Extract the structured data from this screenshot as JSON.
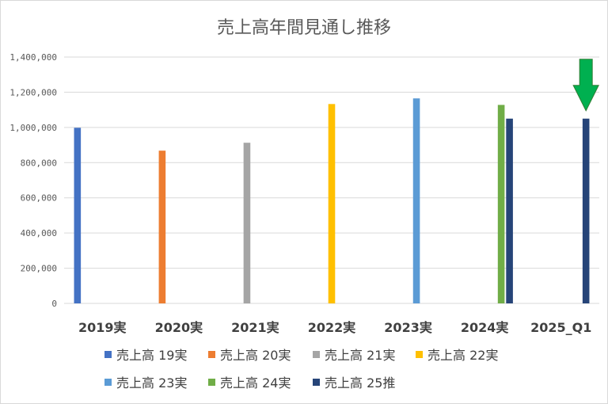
{
  "chart_data": {
    "type": "bar",
    "title": "売上高年間見通し推移",
    "categories": [
      "2019実",
      "2020実",
      "2021実",
      "2022実",
      "2023実",
      "2024実",
      "2025_Q1"
    ],
    "ylim": [
      0,
      1400000
    ],
    "yticks": [
      "0",
      "200,000",
      "400,000",
      "600,000",
      "800,000",
      "1,000,000",
      "1,200,000",
      "1,400,000"
    ],
    "grid": true,
    "legend_position": "bottom",
    "series": [
      {
        "name": "売上高 19実",
        "color": "#4472C4",
        "values": [
          998000,
          null,
          null,
          null,
          null,
          null,
          null
        ]
      },
      {
        "name": "売上高 20実",
        "color": "#ED7D31",
        "values": [
          null,
          868000,
          null,
          null,
          null,
          null,
          null
        ]
      },
      {
        "name": "売上高 21実",
        "color": "#A5A5A5",
        "values": [
          null,
          null,
          913000,
          null,
          null,
          null,
          null
        ]
      },
      {
        "name": "売上高 22実",
        "color": "#FFC000",
        "values": [
          null,
          null,
          null,
          1133000,
          null,
          null,
          null
        ]
      },
      {
        "name": "売上高 23実",
        "color": "#5B9BD5",
        "values": [
          null,
          null,
          null,
          null,
          1165000,
          null,
          null
        ]
      },
      {
        "name": "売上高 24実",
        "color": "#70AD47",
        "values": [
          null,
          null,
          null,
          null,
          null,
          1128000,
          null
        ]
      },
      {
        "name": "売上高 25推",
        "color": "#264478",
        "values": [
          null,
          null,
          null,
          null,
          null,
          1050000,
          1050000
        ]
      }
    ],
    "annotation": {
      "type": "arrow",
      "color": "#00B050",
      "target_category": "2025_Q1"
    }
  }
}
